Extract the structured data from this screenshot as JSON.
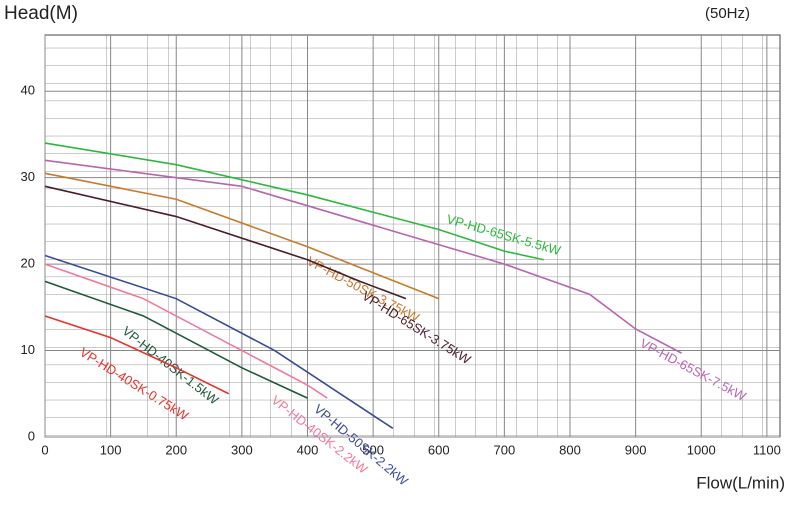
{
  "chart_data": {
    "type": "line",
    "y_label": "Head(M)",
    "x_label": "Flow(L/min)",
    "annotation": "(50Hz)",
    "xlim": [
      0,
      1120
    ],
    "ylim": [
      0,
      46.5
    ],
    "xticks": [
      0,
      100,
      200,
      300,
      400,
      500,
      600,
      700,
      800,
      900,
      1000,
      1100
    ],
    "yticks": [
      0,
      10,
      20,
      30,
      40
    ],
    "grid": true,
    "series": [
      {
        "name": "VP-HD-65SK-5.5kW",
        "color": "#2db83d",
        "x": [
          0,
          200,
          400,
          600,
          700,
          760
        ],
        "values": [
          34,
          31.5,
          28,
          24,
          21.5,
          20.5
        ]
      },
      {
        "name": "VP-HD-65SK-7.5kW",
        "color": "#b865b0",
        "x": [
          0,
          300,
          500,
          700,
          830,
          900,
          970
        ],
        "values": [
          32,
          29,
          24.5,
          20,
          16.5,
          12.5,
          9.7
        ]
      },
      {
        "name": "VP-HD-50SK-3.75kW",
        "color": "#c87a2a",
        "x": [
          0,
          200,
          400,
          500,
          600
        ],
        "values": [
          30.5,
          27.5,
          22,
          19,
          16
        ]
      },
      {
        "name": "VP-HD-65SK-3.75kW",
        "color": "#4a1e28",
        "x": [
          0,
          200,
          400,
          480,
          550
        ],
        "values": [
          29,
          25.5,
          20.5,
          18,
          16
        ]
      },
      {
        "name": "VP-HD-50SK-2.2kW",
        "color": "#3a4a9a",
        "x": [
          0,
          200,
          350,
          450,
          530
        ],
        "values": [
          21,
          16,
          10,
          5,
          1
        ]
      },
      {
        "name": "VP-HD-40SK-2.2kW",
        "color": "#f07a9a",
        "x": [
          0,
          150,
          300,
          400,
          430
        ],
        "values": [
          20,
          16,
          10,
          6,
          4.5
        ]
      },
      {
        "name": "VP-HD-40SK-1.5kW",
        "color": "#1e5a3a",
        "x": [
          0,
          150,
          300,
          400
        ],
        "values": [
          18,
          14,
          8,
          4.5
        ]
      },
      {
        "name": "VP-HD-40SK-0.75kW",
        "color": "#e8322a",
        "x": [
          0,
          100,
          200,
          280
        ],
        "values": [
          14,
          11.5,
          8,
          5
        ]
      }
    ]
  }
}
